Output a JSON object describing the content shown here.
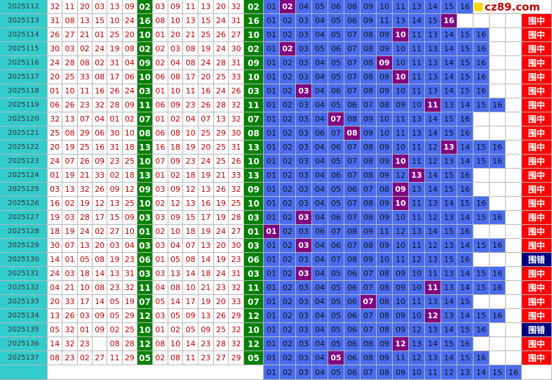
{
  "watermark": "cz89.com",
  "rows": [
    {
      "issue": "2025112",
      "reds": [
        "32",
        "11",
        "20",
        "03",
        "13",
        "09"
      ],
      "blue": "02",
      "sorted": [
        "03",
        "09",
        "11",
        "13",
        "20",
        "32"
      ],
      "cells": [
        "01",
        "02",
        "04",
        "05",
        "06",
        "08",
        "09",
        "10",
        "11",
        "13",
        "14",
        "15",
        "16"
      ],
      "result": null
    },
    {
      "issue": "2025113",
      "reds": [
        "31",
        "08",
        "13",
        "15",
        "10",
        "24"
      ],
      "blue": "16",
      "sorted": [
        "08",
        "10",
        "13",
        "15",
        "24",
        "31"
      ],
      "cells": [
        "01",
        "02",
        "03",
        "04",
        "05",
        "06",
        "09",
        "11",
        "13",
        "14",
        "15",
        "16"
      ],
      "result": "围中"
    },
    {
      "issue": "2025114",
      "reds": [
        "26",
        "27",
        "21",
        "01",
        "25",
        "20"
      ],
      "blue": "10",
      "sorted": [
        "01",
        "20",
        "21",
        "25",
        "26",
        "27"
      ],
      "cells": [
        "01",
        "02",
        "03",
        "04",
        "05",
        "07",
        "08",
        "09",
        "10",
        "11",
        "13",
        "14",
        "15",
        "16"
      ],
      "result": "围中"
    },
    {
      "issue": "2025115",
      "reds": [
        "30",
        "03",
        "02",
        "24",
        "19",
        "08"
      ],
      "blue": "02",
      "sorted": [
        "02",
        "03",
        "08",
        "19",
        "24",
        "30"
      ],
      "cells": [
        "01",
        "02",
        "03",
        "05",
        "06",
        "07",
        "08",
        "09",
        "10",
        "11",
        "13",
        "14",
        "15",
        "16"
      ],
      "result": "围中"
    },
    {
      "issue": "2025116",
      "reds": [
        "24",
        "28",
        "08",
        "02",
        "31",
        "04"
      ],
      "blue": "09",
      "sorted": [
        "02",
        "04",
        "08",
        "24",
        "28",
        "31"
      ],
      "cells": [
        "01",
        "02",
        "03",
        "04",
        "05",
        "07",
        "08",
        "09",
        "10",
        "11",
        "13",
        "14",
        "15",
        "16"
      ],
      "result": "围中"
    },
    {
      "issue": "2025117",
      "reds": [
        "20",
        "25",
        "33",
        "08",
        "17",
        "06"
      ],
      "blue": "10",
      "sorted": [
        "06",
        "08",
        "17",
        "20",
        "25",
        "33"
      ],
      "cells": [
        "01",
        "02",
        "03",
        "04",
        "05",
        "07",
        "08",
        "09",
        "10",
        "11",
        "13",
        "14",
        "15",
        "16"
      ],
      "result": "围中"
    },
    {
      "issue": "2025118",
      "reds": [
        "01",
        "10",
        "11",
        "16",
        "26",
        "24"
      ],
      "blue": "03",
      "sorted": [
        "01",
        "10",
        "11",
        "16",
        "24",
        "26"
      ],
      "cells": [
        "01",
        "02",
        "03",
        "04",
        "06",
        "07",
        "08",
        "09",
        "10",
        "11",
        "13",
        "14",
        "15",
        "16"
      ],
      "result": "围中"
    },
    {
      "issue": "2025119",
      "reds": [
        "06",
        "26",
        "23",
        "32",
        "28",
        "09"
      ],
      "blue": "11",
      "sorted": [
        "06",
        "09",
        "23",
        "26",
        "28",
        "32"
      ],
      "cells": [
        "01",
        "02",
        "03",
        "04",
        "05",
        "06",
        "07",
        "08",
        "09",
        "10",
        "11",
        "13",
        "14",
        "15",
        "16"
      ],
      "result": "围中"
    },
    {
      "issue": "2025120",
      "reds": [
        "32",
        "13",
        "07",
        "04",
        "01",
        "02"
      ],
      "blue": "07",
      "sorted": [
        "01",
        "02",
        "04",
        "07",
        "13",
        "32"
      ],
      "cells": [
        "01",
        "02",
        "03",
        "04",
        "07",
        "08",
        "09",
        "10",
        "11",
        "13",
        "14",
        "15",
        "16"
      ],
      "result": "围中"
    },
    {
      "issue": "2025121",
      "reds": [
        "25",
        "08",
        "29",
        "06",
        "30",
        "10"
      ],
      "blue": "08",
      "sorted": [
        "06",
        "08",
        "10",
        "25",
        "29",
        "30"
      ],
      "cells": [
        "01",
        "02",
        "03",
        "06",
        "07",
        "08",
        "09",
        "10",
        "11",
        "13",
        "14",
        "15",
        "16"
      ],
      "result": "围中"
    },
    {
      "issue": "2025122",
      "reds": [
        "20",
        "19",
        "25",
        "16",
        "31",
        "18"
      ],
      "blue": "13",
      "sorted": [
        "16",
        "18",
        "19",
        "20",
        "25",
        "31"
      ],
      "cells": [
        "01",
        "02",
        "03",
        "04",
        "06",
        "07",
        "08",
        "09",
        "10",
        "11",
        "12",
        "13",
        "14",
        "15",
        "16"
      ],
      "result": "围中"
    },
    {
      "issue": "2025123",
      "reds": [
        "24",
        "07",
        "26",
        "09",
        "23",
        "25"
      ],
      "blue": "10",
      "sorted": [
        "07",
        "09",
        "23",
        "24",
        "25",
        "26"
      ],
      "cells": [
        "01",
        "02",
        "03",
        "04",
        "05",
        "07",
        "08",
        "09",
        "10",
        "11",
        "12",
        "13",
        "14",
        "15",
        "16"
      ],
      "result": "围中"
    },
    {
      "issue": "2025124",
      "reds": [
        "01",
        "19",
        "21",
        "33",
        "02",
        "18"
      ],
      "blue": "13",
      "sorted": [
        "01",
        "02",
        "18",
        "19",
        "21",
        "33"
      ],
      "cells": [
        "01",
        "02",
        "03",
        "04",
        "06",
        "07",
        "08",
        "09",
        "12",
        "13",
        "14",
        "15",
        "16"
      ],
      "result": "围中"
    },
    {
      "issue": "2025125",
      "reds": [
        "03",
        "13",
        "32",
        "26",
        "09",
        "12"
      ],
      "blue": "09",
      "sorted": [
        "03",
        "09",
        "12",
        "13",
        "26",
        "32"
      ],
      "cells": [
        "01",
        "02",
        "03",
        "04",
        "05",
        "06",
        "07",
        "08",
        "09",
        "13",
        "14",
        "15",
        "16"
      ],
      "result": "围中"
    },
    {
      "issue": "2025126",
      "reds": [
        "16",
        "02",
        "19",
        "12",
        "13",
        "25"
      ],
      "blue": "10",
      "sorted": [
        "02",
        "12",
        "13",
        "16",
        "19",
        "25"
      ],
      "cells": [
        "01",
        "02",
        "03",
        "04",
        "05",
        "07",
        "08",
        "09",
        "10",
        "11",
        "13",
        "14",
        "15",
        "16"
      ],
      "result": "围中"
    },
    {
      "issue": "2025127",
      "reds": [
        "19",
        "03",
        "28",
        "17",
        "15",
        "09"
      ],
      "blue": "03",
      "sorted": [
        "03",
        "09",
        "15",
        "17",
        "19",
        "28"
      ],
      "cells": [
        "01",
        "02",
        "03",
        "04",
        "06",
        "07",
        "08",
        "09",
        "10",
        "11",
        "12",
        "13",
        "14",
        "15",
        "16"
      ],
      "result": "围中"
    },
    {
      "issue": "2025128",
      "reds": [
        "18",
        "19",
        "24",
        "02",
        "27",
        "10"
      ],
      "blue": "01",
      "sorted": [
        "02",
        "10",
        "18",
        "19",
        "24",
        "27"
      ],
      "cells": [
        "01",
        "02",
        "03",
        "06",
        "07",
        "08",
        "09",
        "11",
        "12",
        "13",
        "14",
        "15",
        "16"
      ],
      "result": "围中"
    },
    {
      "issue": "2025129",
      "reds": [
        "30",
        "07",
        "13",
        "20",
        "03",
        "04"
      ],
      "blue": "03",
      "sorted": [
        "03",
        "04",
        "07",
        "13",
        "20",
        "30"
      ],
      "cells": [
        "01",
        "02",
        "03",
        "04",
        "06",
        "07",
        "08",
        "09",
        "10",
        "11",
        "12",
        "13",
        "14",
        "15",
        "16"
      ],
      "result": "围中"
    },
    {
      "issue": "2025130",
      "reds": [
        "14",
        "01",
        "05",
        "08",
        "19",
        "23"
      ],
      "blue": "06",
      "sorted": [
        "01",
        "05",
        "08",
        "14",
        "19",
        "23"
      ],
      "cells": [
        "01",
        "02",
        "03",
        "04",
        "07",
        "08",
        "09",
        "10",
        "11",
        "12",
        "13",
        "15",
        "16"
      ],
      "result": "围错"
    },
    {
      "issue": "2025131",
      "reds": [
        "24",
        "03",
        "18",
        "14",
        "13",
        "31"
      ],
      "blue": "03",
      "sorted": [
        "03",
        "13",
        "14",
        "18",
        "24",
        "31"
      ],
      "cells": [
        "01",
        "02",
        "03",
        "04",
        "05",
        "06",
        "07",
        "08",
        "09",
        "10",
        "11",
        "13",
        "14",
        "15",
        "16"
      ],
      "result": "围中"
    },
    {
      "issue": "2025132",
      "reds": [
        "04",
        "21",
        "10",
        "08",
        "23",
        "32"
      ],
      "blue": "11",
      "sorted": [
        "04",
        "08",
        "10",
        "21",
        "23",
        "32"
      ],
      "cells": [
        "01",
        "02",
        "03",
        "04",
        "05",
        "06",
        "07",
        "08",
        "09",
        "10",
        "11",
        "13",
        "14",
        "15",
        "16"
      ],
      "result": "围中"
    },
    {
      "issue": "2025133",
      "reds": [
        "20",
        "33",
        "17",
        "14",
        "05",
        "19"
      ],
      "blue": "07",
      "sorted": [
        "05",
        "14",
        "17",
        "19",
        "20",
        "33"
      ],
      "cells": [
        "01",
        "02",
        "03",
        "04",
        "05",
        "06",
        "07",
        "08",
        "10",
        "11",
        "13",
        "14",
        "15"
      ],
      "result": "围中"
    },
    {
      "issue": "2025134",
      "reds": [
        "13",
        "26",
        "03",
        "09",
        "05",
        "29"
      ],
      "blue": "12",
      "sorted": [
        "03",
        "05",
        "09",
        "13",
        "26",
        "29"
      ],
      "cells": [
        "01",
        "02",
        "03",
        "04",
        "05",
        "06",
        "07",
        "08",
        "09",
        "10",
        "12",
        "13",
        "14",
        "15",
        "16"
      ],
      "result": "围中"
    },
    {
      "issue": "2025135",
      "reds": [
        "05",
        "32",
        "01",
        "09",
        "02",
        "25"
      ],
      "blue": "10",
      "sorted": [
        "01",
        "02",
        "05",
        "09",
        "25",
        "32"
      ],
      "cells": [
        "01",
        "02",
        "03",
        "04",
        "05",
        "06",
        "07",
        "08",
        "09",
        "12",
        "13",
        "14",
        "15",
        "16"
      ],
      "result": "围错"
    },
    {
      "issue": "2025136",
      "reds": [
        "14",
        "32",
        "23",
        null,
        "08",
        "28"
      ],
      "blue": "12",
      "sorted": [
        "08",
        "10",
        "14",
        "23",
        "28",
        "32"
      ],
      "cells": [
        "01",
        "02",
        "03",
        "04",
        "05",
        "06",
        "08",
        "09",
        "12",
        "13",
        "14",
        "15",
        "16"
      ],
      "result": "围中"
    },
    {
      "issue": "2025137",
      "reds": [
        "08",
        "23",
        "02",
        "27",
        "11",
        "29"
      ],
      "blue": "05",
      "sorted": [
        "02",
        "08",
        "11",
        "23",
        "27",
        "29"
      ],
      "cells": [
        "01",
        "02",
        "03",
        "04",
        "05",
        "06",
        "08",
        "09",
        "11",
        "12",
        "13",
        "14",
        "15",
        "16"
      ],
      "result": "围中"
    }
  ],
  "footer": [
    "01",
    "02",
    "03",
    "04",
    "05",
    "06",
    "07",
    "08",
    "09",
    "10",
    "11",
    "12",
    "13",
    "14",
    "15",
    "16"
  ]
}
